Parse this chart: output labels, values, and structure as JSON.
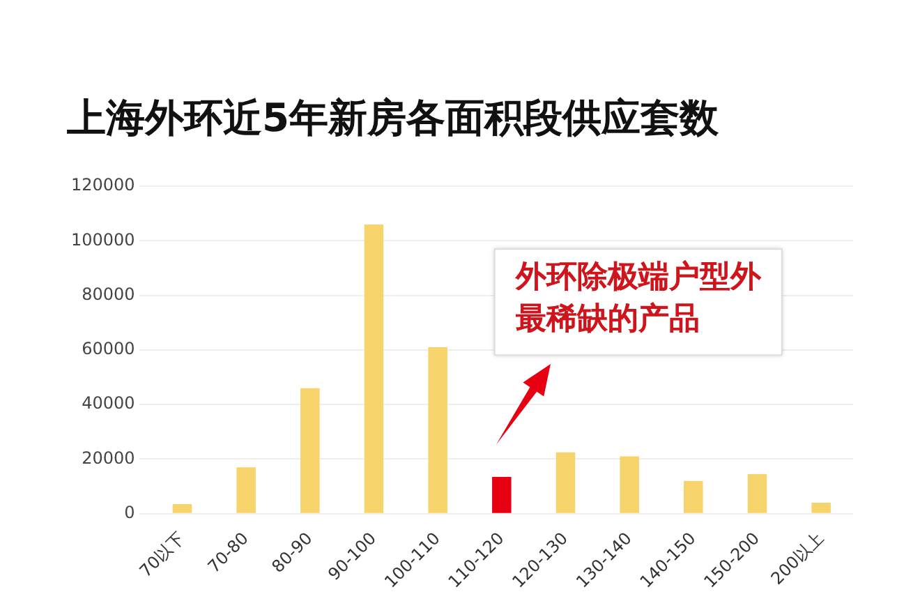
{
  "chart_data": {
    "type": "bar",
    "title": "上海外环近5年新房各面积段供应套数",
    "categories": [
      "70以下",
      "70-80",
      "80-90",
      "90-100",
      "100-110",
      "110-120",
      "120-130",
      "130-140",
      "140-150",
      "150-200",
      "200以上"
    ],
    "values": [
      3500,
      17000,
      46000,
      106000,
      61000,
      13500,
      22500,
      21000,
      12000,
      14500,
      4000
    ],
    "colors": [
      "#f7d36b",
      "#f7d36b",
      "#f7d36b",
      "#f7d36b",
      "#f7d36b",
      "#e60012",
      "#f7d36b",
      "#f7d36b",
      "#f7d36b",
      "#f7d36b",
      "#f7d36b"
    ],
    "ylim": [
      0,
      120000
    ],
    "yticks": [
      0,
      20000,
      40000,
      60000,
      80000,
      100000,
      120000
    ],
    "grid": "y",
    "annotations": [
      "外环除极端户型外最稀缺的产品"
    ]
  }
}
